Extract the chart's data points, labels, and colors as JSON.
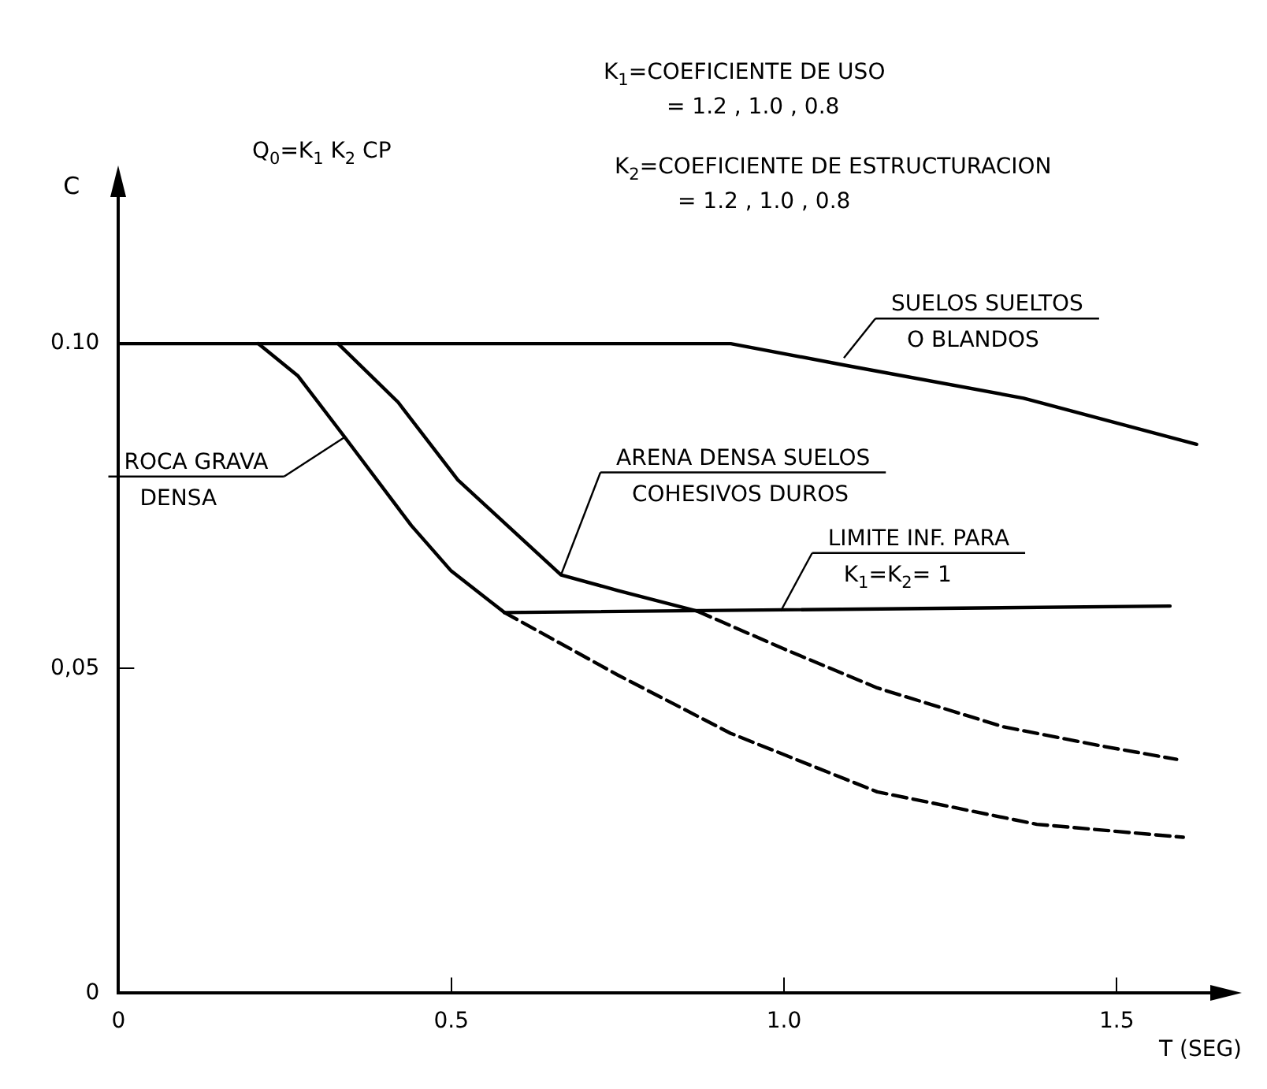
{
  "chart_data": {
    "type": "line",
    "xlabel": "T (SEG)",
    "ylabel": "C",
    "xlim": [
      0,
      1.65
    ],
    "ylim": [
      0,
      0.125
    ],
    "xticks": [
      0,
      {
        "value": 0.5,
        "label": "0.5"
      },
      {
        "value": 1,
        "label": "1.0"
      },
      {
        "value": 1.5,
        "label": "1.5"
      }
    ],
    "yticks": [
      0,
      {
        "value": 0.05,
        "label": "0,05"
      },
      {
        "value": 0.1,
        "label": "0.10"
      }
    ],
    "grid": false,
    "legend": false,
    "marker": "none",
    "series": [
      {
        "color": "#000000",
        "line_style": "solid",
        "x": [
          0,
          0.92,
          1.09,
          1.36,
          1.62
        ],
        "values": [
          0.1,
          0.1,
          0.0967,
          0.0916,
          0.0845
        ]
      },
      {
        "color": "#000000",
        "line_style": "solid",
        "x": [
          0.21,
          0.27,
          0.34,
          0.44,
          0.5,
          0.58
        ],
        "values": [
          0.1,
          0.095,
          0.0856,
          0.072,
          0.065,
          0.0586
        ]
      },
      {
        "color": "#000000",
        "line_style": "dashed",
        "x": [
          0.58,
          0.75,
          0.92,
          1.14,
          1.38,
          1.6
        ],
        "values": [
          0.0586,
          0.049,
          0.04,
          0.031,
          0.026,
          0.024
        ]
      },
      {
        "color": "#000000",
        "line_style": "solid",
        "x": [
          0.33,
          0.42,
          0.51,
          0.665,
          0.75,
          0.87
        ],
        "values": [
          0.1,
          0.091,
          0.079,
          0.0644,
          0.062,
          0.0588
        ]
      },
      {
        "color": "#000000",
        "line_style": "dashed",
        "x": [
          0.87,
          1,
          1.14,
          1.33,
          1.48,
          1.59
        ],
        "values": [
          0.0588,
          0.053,
          0.047,
          0.041,
          0.038,
          0.036
        ]
      },
      {
        "color": "#000000",
        "line_style": "solid",
        "x": [
          0.58,
          1.58
        ],
        "values": [
          0.0586,
          0.0596
        ]
      }
    ],
    "annotations": [
      "Q$_{0}$=K$_{1}$ K$_{2}$ CP",
      "K$_{1}$=COEFICIENTE DE USO\n= 1.2 , 1.0 , 0.8",
      "K$_{2}$=COEFICIENTE DE ESTRUCTURACION\n= 1.2 , 1.0 , 0.8",
      {
        "text": "SUELOS SUELTOS\nO BLANDOS",
        "x": 1.09,
        "y": 0.0978
      },
      {
        "text": "ROCA GRAVA\nDENSA",
        "x": 0.34,
        "y": 0.0856
      },
      {
        "text": "ARENA DENSA SUELOS\nCOHESIVOS DUROS",
        "x": 0.665,
        "y": 0.0644
      },
      {
        "text": "LIMITE INF. PARA\nK$_{1}$=K$_{2}$= 1",
        "x": 0.995,
        "y": 0.0588
      }
    ]
  }
}
